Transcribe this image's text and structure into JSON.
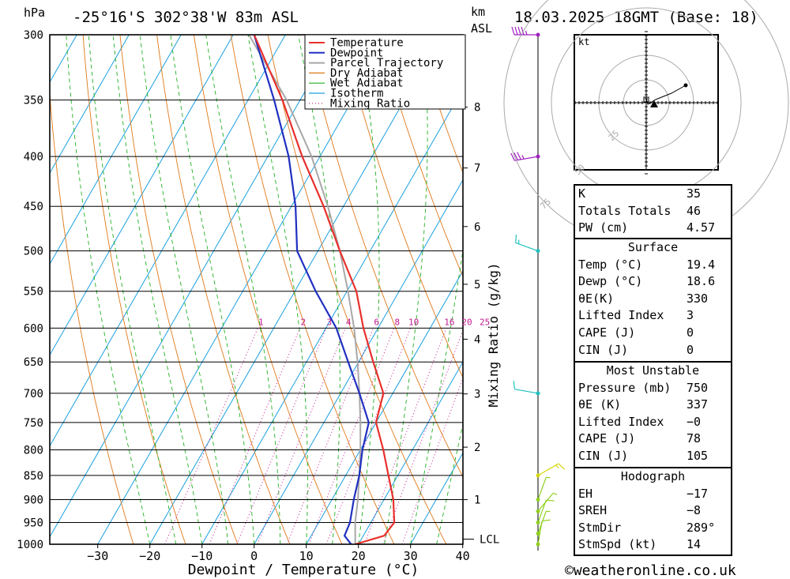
{
  "header": {
    "location": "-25°16'S  302°38'W  83m  ASL",
    "datetime": "18.03.2025  18GMT  (Base: 18)",
    "hpa_label": "hPa",
    "km_label": "km",
    "asl_label": "ASL"
  },
  "colors": {
    "temperature": "#e8302c",
    "dewpoint": "#2030c0",
    "parcel": "#a8a8a8",
    "dry_adiabat": "#e07818",
    "wet_adiabat": "#20b020",
    "isotherm": "#1aa0e0",
    "mixing_ratio": "#c01890",
    "wind_upper": "#a020c0",
    "wind_mid": "#20c0c0",
    "wind_low": "#d8d810",
    "wind_sfc": "#90d020"
  },
  "legend": [
    "Temperature",
    "Dewpoint",
    "Parcel Trajectory",
    "Dry Adiabat",
    "Wet Adiabat",
    "Isotherm",
    "Mixing Ratio"
  ],
  "chart_data": {
    "type": "line",
    "title": "",
    "xlabel": "Dewpoint / Temperature (°C)",
    "ylabel": "hPa",
    "right_axis_label": "Mixing Ratio (g/kg)",
    "pressure_levels": [
      300,
      350,
      400,
      450,
      500,
      550,
      600,
      650,
      700,
      750,
      800,
      850,
      900,
      950,
      1000
    ],
    "x_ticks": [
      -30,
      -20,
      -10,
      0,
      10,
      20,
      30,
      40
    ],
    "km_ticks": [
      1,
      2,
      3,
      4,
      5,
      6,
      7,
      8
    ],
    "lcl_label": "LCL",
    "mixing_ratio_labels": [
      "1",
      "2",
      "3",
      "4",
      "6",
      "8",
      "10",
      "16",
      "20",
      "25"
    ],
    "series": [
      {
        "name": "Temperature",
        "p": [
          1000,
          980,
          950,
          900,
          850,
          800,
          750,
          700,
          650,
          600,
          550,
          500,
          450,
          400,
          350,
          300
        ],
        "t": [
          19.4,
          24.0,
          24.5,
          21.8,
          18.2,
          14.4,
          10.0,
          8.2,
          2.8,
          -2.8,
          -8.2,
          -15.8,
          -23.8,
          -33.4,
          -43.4,
          -56.0
        ]
      },
      {
        "name": "Dewpoint",
        "p": [
          1000,
          980,
          950,
          900,
          850,
          800,
          750,
          700,
          650,
          600,
          550,
          500,
          450,
          400,
          350,
          300
        ],
        "t": [
          18.6,
          16.4,
          16.0,
          14.2,
          12.6,
          10.4,
          8.6,
          3.6,
          -2.0,
          -8.0,
          -16.0,
          -24.0,
          -29.2,
          -36.0,
          -45.0,
          -56.0
        ]
      },
      {
        "name": "Parcel Trajectory",
        "p": [
          1000,
          950,
          900,
          850,
          800,
          750,
          700,
          650,
          600,
          550,
          500,
          450,
          400,
          350,
          300
        ],
        "t": [
          19.4,
          17.0,
          15.0,
          12.6,
          10.0,
          7.0,
          3.6,
          -0.2,
          -4.6,
          -9.8,
          -15.8,
          -23.0,
          -31.6,
          -42.6,
          -57.0
        ]
      }
    ],
    "isotherms_c": [
      -100,
      -90,
      -80,
      -70,
      -60,
      -50,
      -40,
      -30,
      -20,
      -10,
      0,
      10,
      20,
      30,
      40
    ],
    "dry_adiabats_theta_k": [
      250,
      260,
      270,
      280,
      290,
      300,
      310,
      320,
      330,
      340,
      350,
      360,
      370,
      380,
      390,
      400,
      410,
      420,
      430
    ],
    "wet_adiabats_c": [
      -20,
      -15,
      -10,
      -5,
      0,
      5,
      10,
      15,
      20,
      25,
      30,
      35
    ],
    "mixing_ratios_gkg": [
      1,
      2,
      3,
      4,
      6,
      8,
      10,
      16,
      20,
      25
    ],
    "winds": [
      {
        "p": 300,
        "dir": 270,
        "spd_kt": 45
      },
      {
        "p": 400,
        "dir": 260,
        "spd_kt": 35
      },
      {
        "p": 500,
        "dir": 290,
        "spd_kt": 15
      },
      {
        "p": 700,
        "dir": 280,
        "spd_kt": 10
      },
      {
        "p": 850,
        "dir": 60,
        "spd_kt": 15
      },
      {
        "p": 900,
        "dir": 20,
        "spd_kt": 5
      },
      {
        "p": 925,
        "dir": 40,
        "spd_kt": 5
      },
      {
        "p": 950,
        "dir": 20,
        "spd_kt": 10
      },
      {
        "p": 975,
        "dir": 20,
        "spd_kt": 5
      },
      {
        "p": 1000,
        "dir": 10,
        "spd_kt": 10
      }
    ]
  },
  "hodograph": {
    "unit_label": "kt",
    "ring_labels": [
      "25",
      "50",
      "75"
    ],
    "points_uv_kt": [
      [
        0,
        3
      ],
      [
        1,
        -1
      ],
      [
        6,
        2
      ],
      [
        16,
        6
      ],
      [
        25,
        11
      ]
    ],
    "storm_motion_uv_kt": [
      5,
      -1
    ]
  },
  "indices": {
    "k_label": "K",
    "k_value": "35",
    "tt_label": "Totals Totals",
    "tt_value": "46",
    "pw_label": "PW (cm)",
    "pw_value": "4.57"
  },
  "surface": {
    "title": "Surface",
    "temp_label": "Temp (°C)",
    "temp_value": "19.4",
    "dewp_label": "Dewp (°C)",
    "dewp_value": "18.6",
    "theta_label": "θE(K)",
    "theta_value": "330",
    "li_label": "Lifted Index",
    "li_value": "3",
    "cape_label": "CAPE (J)",
    "cape_value": "0",
    "cin_label": "CIN (J)",
    "cin_value": "0"
  },
  "most_unstable": {
    "title": "Most Unstable",
    "pressure_label": "Pressure (mb)",
    "pressure_value": "750",
    "theta_label": "θE (K)",
    "theta_value": "337",
    "li_label": "Lifted Index",
    "li_value": "−0",
    "cape_label": "CAPE (J)",
    "cape_value": "78",
    "cin_label": "CIN (J)",
    "cin_value": "105"
  },
  "hodo_indices": {
    "title": "Hodograph",
    "eh_label": "EH",
    "eh_value": "−17",
    "sreh_label": "SREH",
    "sreh_value": "−8",
    "stmdir_label": "StmDir",
    "stmdir_value": "289°",
    "stmspd_label": "StmSpd (kt)",
    "stmspd_value": "14"
  },
  "footer": {
    "copyright": "©weatheronline.co.uk"
  }
}
